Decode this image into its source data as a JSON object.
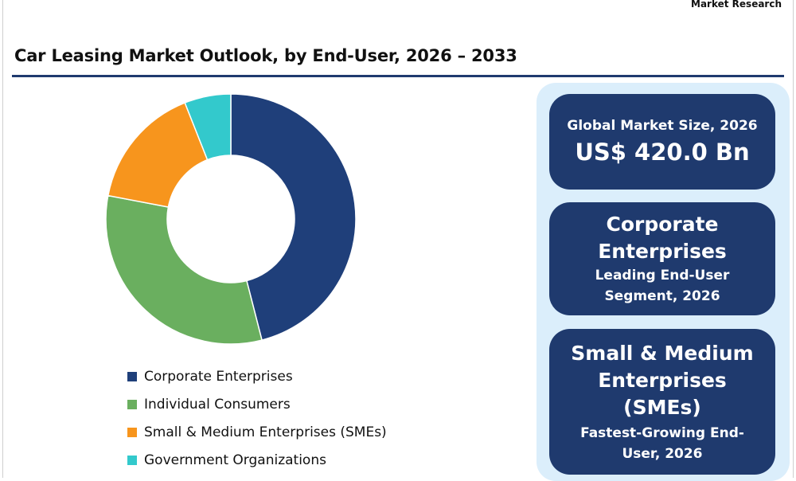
{
  "brand": "Market Research",
  "title": "Car Leasing Market Outlook, by End-User, 2026 – 2033",
  "chart_data": {
    "type": "pie",
    "donut": true,
    "categories": [
      "Corporate Enterprises",
      "Individual Consumers",
      "Small & Medium Enterprises (SMEs)",
      "Government Organizations"
    ],
    "values": [
      46,
      32,
      16,
      6
    ],
    "colors": [
      "#1f3f7a",
      "#6aaf5f",
      "#f7951d",
      "#33c9cc"
    ]
  },
  "legend": [
    {
      "label": "Corporate Enterprises",
      "color": "#1f3f7a"
    },
    {
      "label": "Individual Consumers",
      "color": "#6aaf5f"
    },
    {
      "label": "Small & Medium Enterprises (SMEs)",
      "color": "#f7951d"
    },
    {
      "label": "Government Organizations",
      "color": "#33c9cc"
    }
  ],
  "cards": {
    "market_size": {
      "label": "Global Market Size, 2026",
      "value": "US$ 420.0 Bn"
    },
    "leading": {
      "line1": "Corporate",
      "line2": "Enterprises",
      "sub1": "Leading End-User",
      "sub2": "Segment, 2026"
    },
    "fastest": {
      "line1": "Small & Medium",
      "line2": "Enterprises (SMEs)",
      "sub1": "Fastest-Growing End-",
      "sub2": "User, 2026"
    }
  }
}
